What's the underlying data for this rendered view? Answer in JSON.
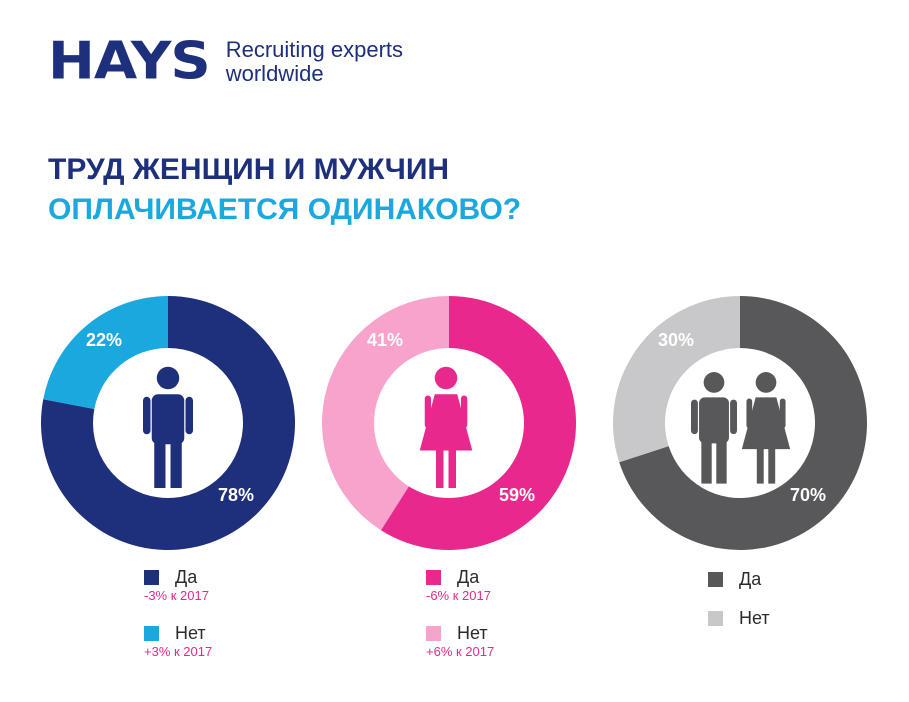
{
  "brand": {
    "logo": "HAYS",
    "tagline_line1": "Recruiting experts",
    "tagline_line2": "worldwide",
    "color": "#1e2f7c"
  },
  "title": {
    "line1": "ТРУД ЖЕНЩИН И МУЖЧИН",
    "line2": "ОПЛАЧИВАЕТСЯ ОДИНАКОВО?",
    "line1_color": "#1e2f7c",
    "line2_color": "#1ba8df"
  },
  "chart_data": [
    {
      "type": "pie",
      "subtype": "donut",
      "icon": "male-icon",
      "categories": [
        "Да",
        "Нет"
      ],
      "values": [
        78,
        22
      ],
      "labels": [
        "78%",
        "22%"
      ],
      "colors": [
        "#1e2f7c",
        "#1ba8df"
      ],
      "deltas": [
        "-3% к 2017",
        "+3% к 2017"
      ]
    },
    {
      "type": "pie",
      "subtype": "donut",
      "icon": "female-icon",
      "categories": [
        "Да",
        "Нет"
      ],
      "values": [
        59,
        41
      ],
      "labels": [
        "59%",
        "41%"
      ],
      "colors": [
        "#e8288c",
        "#f7a3cb"
      ],
      "deltas": [
        "-6% к 2017",
        "+6% к 2017"
      ]
    },
    {
      "type": "pie",
      "subtype": "donut",
      "icon": "male-female-icon",
      "categories": [
        "Да",
        "Нет"
      ],
      "values": [
        70,
        30
      ],
      "labels": [
        "70%",
        "30%"
      ],
      "colors": [
        "#58575a",
        "#c8c7c9"
      ],
      "deltas": [
        "",
        ""
      ]
    }
  ],
  "icon_colors": [
    "#1e2f7c",
    "#e8288c",
    "#58575a"
  ]
}
